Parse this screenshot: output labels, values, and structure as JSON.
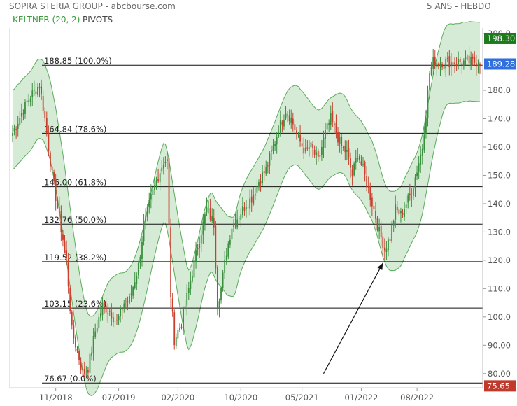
{
  "header": {
    "title": "SOPRA STERIA GROUP - abcbourse.com",
    "period": "5 ANS - HEBDO",
    "legend_keltner": "KELTNER (20, 2)",
    "legend_pivots": "PIVOTS"
  },
  "colors": {
    "up": "#3a8f3f",
    "down": "#c9402e",
    "band_fill": "#cfe8cf",
    "band_line": "#5aac5a",
    "last_badge": "#1f7a1f",
    "high_badge": "#1f7a1f",
    "ref_badge": "#2f6fe0",
    "low_badge": "#c0392b"
  },
  "chart_data": {
    "type": "candlestick",
    "ylim": [
      75,
      202
    ],
    "y_ticks": [
      80,
      90,
      100,
      110,
      120,
      130,
      140,
      150,
      160,
      170,
      180,
      190,
      200
    ],
    "y_tick_labels": [
      "80.00",
      "90.00",
      "100.0",
      "110.0",
      "120.0",
      "130.0",
      "140.0",
      "150.0",
      "160.0",
      "170.0",
      "180.0",
      "190.0",
      "200.0"
    ],
    "x_labels": [
      "11/2018",
      "07/2019",
      "02/2020",
      "10/2020",
      "05/2021",
      "01/2022",
      "08/2022"
    ],
    "x_label_weeks": [
      24,
      59,
      92,
      127,
      161,
      194,
      225
    ],
    "n_weeks": 261,
    "anchors": [
      [
        0,
        165
      ],
      [
        5,
        172
      ],
      [
        10,
        178
      ],
      [
        15,
        182
      ],
      [
        18,
        170
      ],
      [
        22,
        150
      ],
      [
        26,
        135
      ],
      [
        30,
        120
      ],
      [
        33,
        95
      ],
      [
        36,
        88
      ],
      [
        39,
        80
      ],
      [
        42,
        82
      ],
      [
        46,
        95
      ],
      [
        50,
        104
      ],
      [
        54,
        102
      ],
      [
        58,
        98
      ],
      [
        62,
        105
      ],
      [
        65,
        106
      ],
      [
        70,
        118
      ],
      [
        73,
        132
      ],
      [
        77,
        142
      ],
      [
        80,
        148
      ],
      [
        84,
        155
      ],
      [
        86,
        155
      ],
      [
        88,
        108
      ],
      [
        90,
        92
      ],
      [
        94,
        98
      ],
      [
        98,
        110
      ],
      [
        103,
        125
      ],
      [
        108,
        138
      ],
      [
        112,
        133
      ],
      [
        114,
        105
      ],
      [
        116,
        110
      ],
      [
        119,
        123
      ],
      [
        122,
        132
      ],
      [
        126,
        136
      ],
      [
        130,
        140
      ],
      [
        133,
        142
      ],
      [
        137,
        148
      ],
      [
        141,
        152
      ],
      [
        145,
        160
      ],
      [
        149,
        168
      ],
      [
        152,
        173
      ],
      [
        155,
        170
      ],
      [
        159,
        163
      ],
      [
        163,
        158
      ],
      [
        166,
        160
      ],
      [
        170,
        155
      ],
      [
        174,
        165
      ],
      [
        177,
        170
      ],
      [
        180,
        165
      ],
      [
        183,
        160
      ],
      [
        186,
        158
      ],
      [
        189,
        150
      ],
      [
        192,
        158
      ],
      [
        195,
        152
      ],
      [
        198,
        145
      ],
      [
        201,
        138
      ],
      [
        204,
        130
      ],
      [
        207,
        124
      ],
      [
        210,
        128
      ],
      [
        213,
        138
      ],
      [
        216,
        136
      ],
      [
        219,
        140
      ],
      [
        222,
        144
      ],
      [
        225,
        152
      ],
      [
        228,
        160
      ],
      [
        230,
        172
      ],
      [
        232,
        186
      ],
      [
        234,
        190
      ]
    ],
    "keltner_upper_offset": 14,
    "keltner_lower_offset": 14,
    "fibonacci": [
      {
        "value": 188.85,
        "label": "188.85  (100.0%)"
      },
      {
        "value": 164.84,
        "label": "164.84  (78.6%)"
      },
      {
        "value": 146.0,
        "label": "146.00  (61.8%)"
      },
      {
        "value": 132.76,
        "label": "132.76  (50.0%)"
      },
      {
        "value": 119.52,
        "label": "119.52  (38.2%)"
      },
      {
        "value": 103.15,
        "label": "103.15  (23.6%)"
      },
      {
        "value": 76.67,
        "label": "76.67  (0.0%)"
      }
    ],
    "badges": [
      {
        "value": 198.3,
        "label": "198.30",
        "color": "high_badge"
      },
      {
        "value": 189.28,
        "label": "189.28",
        "color": "ref_badge"
      },
      {
        "value": 75.65,
        "label": "75.65",
        "color": "low_badge"
      }
    ],
    "arrow": {
      "from": [
        173,
        80
      ],
      "to": [
        206,
        119
      ]
    }
  }
}
